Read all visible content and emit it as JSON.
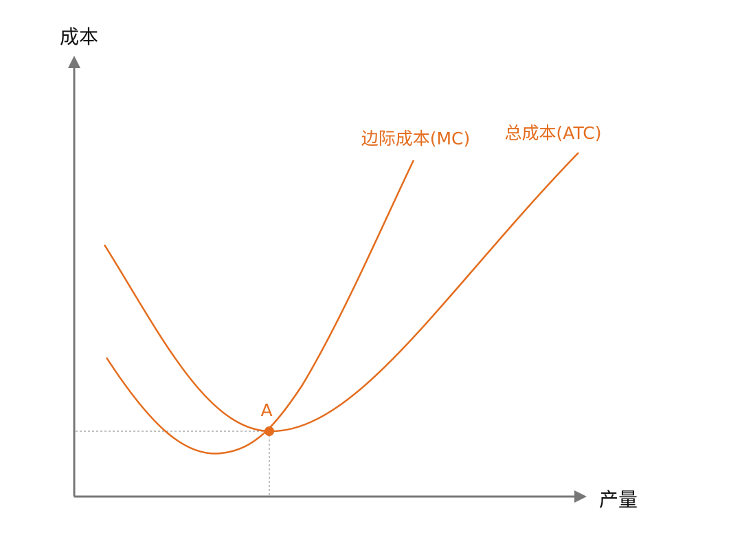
{
  "axes": {
    "y_label": "成本",
    "x_label": "产量"
  },
  "curves": [
    {
      "label": "边际成本(MC)"
    },
    {
      "label": "总成本(ATC)"
    }
  ],
  "point": {
    "label": "A"
  }
}
